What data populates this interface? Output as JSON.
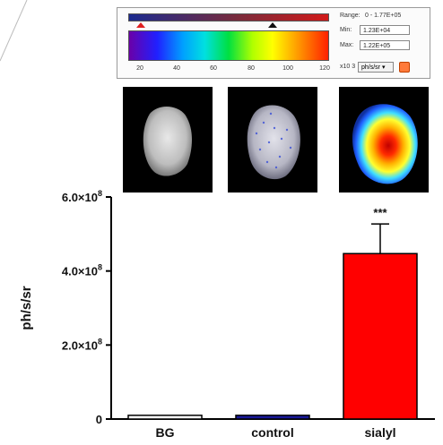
{
  "colorbar": {
    "range_label": "Range:",
    "range_value": "0 - 1.77E+05",
    "min_label": "Min:",
    "min_value": "1.23E+04",
    "max_label": "Max:",
    "max_value": "1.22E+05",
    "scale_label": "x10 3",
    "unit": "ph/s/sr ▾",
    "ticks": [
      "20",
      "40",
      "60",
      "80",
      "100",
      "120"
    ]
  },
  "thumbnails": [
    {
      "name": "BG",
      "signal": "none"
    },
    {
      "name": "control",
      "signal": "low"
    },
    {
      "name": "sialyl",
      "signal": "high"
    }
  ],
  "chart_data": {
    "type": "bar",
    "categories": [
      "BG",
      "control",
      "sialyl"
    ],
    "values": [
      10000000.0,
      10000000.0,
      447000000.0
    ],
    "errors": [
      0,
      0,
      80000000.0
    ],
    "colors": [
      "#ffffff",
      "#1a1a9a",
      "#ff0000"
    ],
    "ylabel": "ph/s/sr",
    "ylim": [
      0,
      600000000.0
    ],
    "yticks": [
      0,
      200000000.0,
      400000000.0,
      600000000.0
    ],
    "ytick_labels": [
      "0",
      "2.0×10",
      "4.0×10",
      "6.0×10"
    ],
    "ytick_exponent": "8",
    "annotation": {
      "category": "sialyl",
      "text": "***"
    }
  }
}
